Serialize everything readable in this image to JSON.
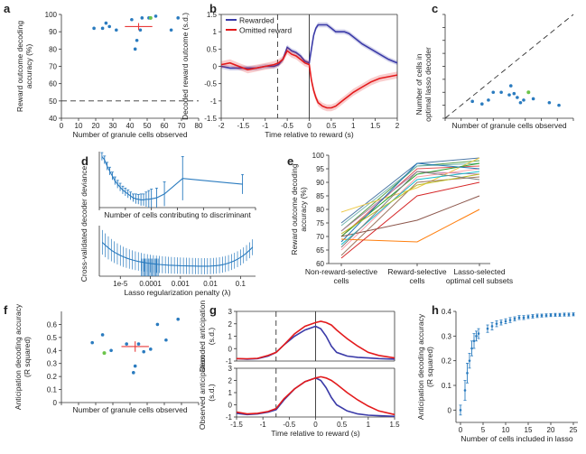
{
  "colors": {
    "blue": "#2a7bbf",
    "red": "#e83a3a",
    "green": "#6bc44a",
    "rewarded": "#3b3ba8",
    "omitted": "#e31a1c"
  },
  "chart_data": [
    {
      "panel": "a",
      "type": "scatter",
      "xlabel": "Number of granule cells observed",
      "ylabel": "Reward outcome decoding accuracy (%)",
      "xlim": [
        0,
        80
      ],
      "ylim": [
        40,
        100
      ],
      "xticks": [
        0,
        10,
        20,
        30,
        40,
        50,
        60,
        70,
        80
      ],
      "yticks": [
        40,
        50,
        60,
        70,
        80,
        90,
        100
      ],
      "chance_level": 50,
      "points": [
        [
          19,
          92
        ],
        [
          24,
          92
        ],
        [
          26,
          95
        ],
        [
          28,
          93
        ],
        [
          32,
          91
        ],
        [
          41,
          97
        ],
        [
          43,
          80
        ],
        [
          44,
          85
        ],
        [
          46,
          91
        ],
        [
          47,
          98
        ],
        [
          51,
          98
        ],
        [
          52,
          98
        ],
        [
          55,
          99
        ],
        [
          64,
          91
        ],
        [
          68,
          98
        ]
      ],
      "highlight_point": [
        52,
        98
      ],
      "mean": [
        45,
        93
      ],
      "sem_x": 4,
      "sem_y": 2
    },
    {
      "panel": "b",
      "type": "line",
      "xlabel": "Time relative to reward (s)",
      "ylabel": "Decoded reward outcome (s.d.)",
      "xlim": [
        -2,
        2
      ],
      "ylim": [
        -1.5,
        1.5
      ],
      "xticks": [
        -2,
        -1.5,
        -1,
        -0.5,
        0,
        0.5,
        1,
        1.5,
        2
      ],
      "xtick_labels": [
        "-2",
        "-1.5",
        "-1",
        "-0.5",
        "0",
        "0.5",
        "1",
        "1.5",
        "2"
      ],
      "yticks": [
        -1.5,
        -1,
        -0.5,
        0,
        0.5,
        1,
        1.5
      ],
      "ytick_labels": [
        "-1.5",
        "-1",
        "-0.5",
        "0",
        "0.5",
        "1",
        "1.5"
      ],
      "dashed_x": -0.72,
      "solid_x": 0,
      "legend": [
        "Rewarded",
        "Omitted reward"
      ],
      "x": [
        -2,
        -1.8,
        -1.6,
        -1.4,
        -1.2,
        -1.0,
        -0.8,
        -0.7,
        -0.6,
        -0.5,
        -0.4,
        -0.3,
        -0.2,
        -0.1,
        0.0,
        0.05,
        0.1,
        0.15,
        0.2,
        0.3,
        0.4,
        0.5,
        0.6,
        0.7,
        0.8,
        0.9,
        1.0,
        1.2,
        1.4,
        1.6,
        1.8,
        2.0
      ],
      "series": [
        {
          "name": "Rewarded",
          "values": [
            0.0,
            -0.05,
            -0.05,
            -0.05,
            -0.05,
            0.0,
            0.0,
            0.05,
            0.2,
            0.55,
            0.45,
            0.4,
            0.3,
            0.15,
            0.1,
            0.5,
            0.9,
            1.1,
            1.2,
            1.2,
            1.2,
            1.1,
            1.0,
            1.0,
            1.0,
            0.95,
            0.85,
            0.65,
            0.5,
            0.35,
            0.2,
            0.1
          ],
          "band": 0.07
        },
        {
          "name": "Omitted reward",
          "values": [
            0.05,
            0.1,
            0.0,
            -0.1,
            -0.05,
            0.0,
            0.05,
            0.1,
            0.2,
            0.45,
            0.35,
            0.3,
            0.2,
            0.1,
            0.05,
            -0.4,
            -0.7,
            -0.9,
            -1.05,
            -1.15,
            -1.2,
            -1.2,
            -1.15,
            -1.05,
            -0.95,
            -0.85,
            -0.75,
            -0.6,
            -0.45,
            -0.35,
            -0.3,
            -0.25
          ],
          "band": 0.1
        }
      ]
    },
    {
      "panel": "c",
      "type": "scatter",
      "xlabel": "Number of granule cells observed",
      "ylabel": "Number of cells in optimal lasso decoder",
      "xlim": [
        0,
        80
      ],
      "ylim": [
        0,
        80
      ],
      "xticks": [
        0,
        10,
        20,
        30,
        40,
        50,
        60,
        70,
        80
      ],
      "yticks": [
        0,
        10,
        20,
        30,
        40,
        50,
        60,
        70,
        80
      ],
      "identity_line": true,
      "points": [
        [
          17,
          13
        ],
        [
          23,
          11
        ],
        [
          27,
          14
        ],
        [
          30,
          20
        ],
        [
          35,
          20
        ],
        [
          40,
          18
        ],
        [
          41,
          25
        ],
        [
          43,
          19
        ],
        [
          45,
          16
        ],
        [
          47,
          12
        ],
        [
          49,
          14
        ],
        [
          55,
          15
        ],
        [
          65,
          12
        ],
        [
          71,
          10
        ]
      ],
      "highlight_point": [
        52,
        20
      ]
    },
    {
      "panel": "d-top",
      "type": "line",
      "xlabel": "Number of cells contributing to discriminant",
      "ylabel": "Cross-validated decoder deviance",
      "xlim": [
        0,
        60
      ],
      "xticks": [
        0,
        10,
        20,
        30,
        40,
        50,
        60
      ],
      "x": [
        1,
        2,
        3,
        4,
        5,
        6,
        7,
        8,
        9,
        10,
        11,
        12,
        13,
        14,
        15,
        16,
        17,
        18,
        19,
        20,
        22,
        25,
        32,
        55
      ],
      "values": [
        105,
        98,
        85,
        75,
        65,
        55,
        48,
        42,
        36,
        32,
        28,
        24,
        20,
        18,
        17,
        16,
        16,
        17,
        17,
        18,
        20,
        28,
        60,
        48
      ],
      "err": [
        8,
        8,
        8,
        8,
        8,
        8,
        8,
        8,
        8,
        8,
        8,
        8,
        8,
        10,
        10,
        12,
        12,
        15,
        18,
        20,
        20,
        25,
        45,
        20
      ]
    },
    {
      "panel": "d-bottom",
      "type": "line",
      "xlabel": "Lasso regularization penalty (λ)",
      "ylabel": "Cross-validated decoder deviance",
      "xscale": "log",
      "xlim_exp": [
        -5.7,
        -0.5
      ],
      "xtick_labels": [
        "1e-5",
        "0.0001",
        "0.001",
        "0.01",
        "0.1"
      ],
      "xtick_exp": [
        -5,
        -4,
        -3,
        -2,
        -1
      ]
    },
    {
      "panel": "e",
      "type": "line",
      "ylabel": "Reward outcome decoding accuracy (%)",
      "categories": [
        "Non-reward-selective cells",
        "Reward-selective cells",
        "Lasso-selected optimal cell subsets"
      ],
      "cat_lines": [
        [
          "Non-reward-selective",
          "cells"
        ],
        [
          "Reward-selective",
          "cells"
        ],
        [
          "Lasso-selected",
          "optimal cell subsets"
        ]
      ],
      "ylim": [
        60,
        100
      ],
      "yticks": [
        60,
        65,
        70,
        75,
        80,
        85,
        90,
        95,
        100
      ],
      "series": [
        {
          "color": "#4e79a7",
          "values": [
            75,
            97,
            99
          ]
        },
        {
          "color": "#59a14f",
          "values": [
            72,
            96,
            98
          ]
        },
        {
          "color": "#e15759",
          "values": [
            70,
            95,
            96
          ]
        },
        {
          "color": "#76b7b2",
          "values": [
            74,
            96,
            97
          ]
        },
        {
          "color": "#edc948",
          "values": [
            79,
            88,
            99
          ]
        },
        {
          "color": "#b07aa1",
          "values": [
            72,
            94,
            93
          ]
        },
        {
          "color": "#ff9da7",
          "values": [
            65,
            92,
            95
          ]
        },
        {
          "color": "#9c755f",
          "values": [
            63,
            90,
            92
          ]
        },
        {
          "color": "#2ca02c",
          "values": [
            70,
            93,
            97
          ]
        },
        {
          "color": "#1f77b4",
          "values": [
            68,
            97,
            95
          ]
        },
        {
          "color": "#ff7f0e",
          "values": [
            69,
            68,
            80
          ]
        },
        {
          "color": "#d62728",
          "values": [
            62,
            85,
            90
          ]
        },
        {
          "color": "#8c564b",
          "values": [
            70,
            76,
            85
          ]
        },
        {
          "color": "#17becf",
          "values": [
            67,
            91,
            94
          ]
        },
        {
          "color": "#bcbd22",
          "values": [
            71,
            89,
            93
          ]
        },
        {
          "color": "#7f7f7f",
          "values": [
            66,
            94,
            91
          ]
        }
      ]
    },
    {
      "panel": "f",
      "type": "scatter",
      "xlabel": "Number of granule cells observed",
      "ylabel": "Anticipation decoding accuracy (R squared)",
      "xlim": [
        0,
        80
      ],
      "ylim": [
        0,
        0.7
      ],
      "xticks": [
        0,
        10,
        20,
        30,
        40,
        50,
        60,
        70,
        80
      ],
      "yticks": [
        0,
        0.1,
        0.2,
        0.3,
        0.4,
        0.5,
        0.6
      ],
      "ytick_labels": [
        "0",
        "0.1",
        "0.2",
        "0.3",
        "0.4",
        "0.5",
        "0.6"
      ],
      "points": [
        [
          18,
          0.46
        ],
        [
          24,
          0.52
        ],
        [
          29,
          0.4
        ],
        [
          38,
          0.45
        ],
        [
          42,
          0.23
        ],
        [
          43,
          0.28
        ],
        [
          45,
          0.45
        ],
        [
          48,
          0.39
        ],
        [
          52,
          0.41
        ],
        [
          56,
          0.6
        ],
        [
          61,
          0.48
        ],
        [
          68,
          0.64
        ]
      ],
      "highlight_point": [
        25,
        0.38
      ],
      "mean": [
        43,
        0.43
      ],
      "sem_x": 4,
      "sem_y": 0.04
    },
    {
      "panel": "g-top",
      "type": "line",
      "ylabel": "Decoded anticipation (s.d.)",
      "xlim": [
        -1.5,
        1.5
      ],
      "ylim": [
        -1,
        3
      ],
      "yticks": [
        -1,
        0,
        1,
        2,
        3
      ],
      "dashed_x": -0.75,
      "solid_x": 0,
      "x": [
        -1.5,
        -1.3,
        -1.1,
        -0.9,
        -0.75,
        -0.6,
        -0.4,
        -0.2,
        0.0,
        0.1,
        0.2,
        0.3,
        0.4,
        0.6,
        0.8,
        1.0,
        1.2,
        1.5
      ],
      "series": [
        {
          "name": "Blue",
          "values": [
            -0.8,
            -0.85,
            -0.8,
            -0.6,
            -0.3,
            0.3,
            1.0,
            1.5,
            1.8,
            1.6,
            1.0,
            0.2,
            -0.3,
            -0.6,
            -0.7,
            -0.75,
            -0.8,
            -0.85
          ]
        },
        {
          "name": "Red",
          "values": [
            -0.8,
            -0.82,
            -0.78,
            -0.55,
            -0.3,
            0.3,
            1.2,
            1.8,
            2.1,
            2.2,
            2.1,
            1.9,
            1.5,
            0.8,
            0.2,
            -0.3,
            -0.55,
            -0.75
          ]
        }
      ]
    },
    {
      "panel": "g-bottom",
      "type": "line",
      "xlabel": "Time relative to reward (s)",
      "ylabel": "Observed anticipation (s.d.)",
      "xlim": [
        -1.5,
        1.5
      ],
      "ylim": [
        -1,
        3
      ],
      "xticks": [
        -1.5,
        -1,
        -0.5,
        0,
        0.5,
        1,
        1.5
      ],
      "xtick_labels": [
        "-1.5",
        "-1",
        "-0.5",
        "0",
        "0.5",
        "1",
        "1.5"
      ],
      "yticks": [
        -1,
        0,
        1,
        2,
        3
      ],
      "dashed_x": -0.75,
      "solid_x": 0,
      "x": [
        -1.5,
        -1.3,
        -1.1,
        -0.9,
        -0.75,
        -0.6,
        -0.4,
        -0.2,
        0.0,
        0.1,
        0.2,
        0.3,
        0.4,
        0.6,
        0.8,
        1.0,
        1.2,
        1.5
      ],
      "series": [
        {
          "name": "Blue",
          "values": [
            -0.7,
            -0.8,
            -0.75,
            -0.6,
            -0.4,
            0.4,
            1.3,
            1.9,
            2.2,
            2.0,
            1.4,
            0.6,
            0.0,
            -0.5,
            -0.75,
            -0.85,
            -0.9,
            -0.95
          ]
        },
        {
          "name": "Red",
          "values": [
            -0.6,
            -0.75,
            -0.7,
            -0.55,
            -0.3,
            0.5,
            1.3,
            1.9,
            2.2,
            2.3,
            2.2,
            2.0,
            1.7,
            1.0,
            0.4,
            -0.1,
            -0.5,
            -0.8
          ]
        }
      ]
    },
    {
      "panel": "h",
      "type": "scatter",
      "xlabel": "Number of cells included in lasso",
      "ylabel": "Anticipation decoding accuracy (R squared)",
      "xlim": [
        -1,
        26
      ],
      "ylim": [
        -0.05,
        0.4
      ],
      "xticks": [
        0,
        5,
        10,
        15,
        20,
        25
      ],
      "yticks": [
        0,
        0.1,
        0.2,
        0.3,
        0.4
      ],
      "ytick_labels": [
        "0",
        "0.1",
        "0.2",
        "0.3",
        "0.4"
      ],
      "x": [
        0,
        1,
        1.5,
        2,
        2.5,
        3,
        3.5,
        4,
        6,
        7,
        8,
        9,
        10,
        11,
        12,
        13,
        14,
        15,
        16,
        17,
        18,
        19,
        20,
        21,
        22,
        23,
        24,
        25
      ],
      "values": [
        0.0,
        0.08,
        0.15,
        0.2,
        0.25,
        0.28,
        0.3,
        0.31,
        0.33,
        0.34,
        0.35,
        0.355,
        0.36,
        0.365,
        0.37,
        0.375,
        0.375,
        0.378,
        0.38,
        0.382,
        0.383,
        0.384,
        0.385,
        0.386,
        0.386,
        0.387,
        0.387,
        0.388
      ],
      "err": [
        0.02,
        0.04,
        0.04,
        0.03,
        0.03,
        0.03,
        0.02,
        0.02,
        0.015,
        0.015,
        0.012,
        0.01,
        0.01,
        0.01,
        0.008,
        0.008,
        0.008,
        0.007,
        0.007,
        0.007,
        0.006,
        0.006,
        0.006,
        0.006,
        0.006,
        0.006,
        0.006,
        0.006
      ]
    }
  ]
}
